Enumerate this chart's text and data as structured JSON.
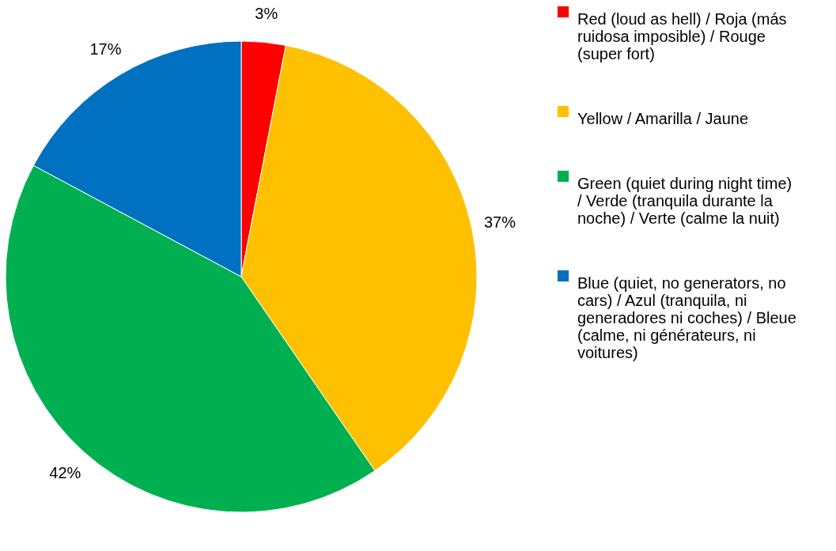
{
  "chart_data": {
    "type": "pie",
    "categories": [
      "Red (loud as hell) / Roja (más ruidosa imposible) / Rouge (super fort)",
      "Yellow / Amarilla / Jaune",
      "Green (quiet during night time) / Verde (tranquila durante la noche) / Verte (calme la nuit)",
      "Blue (quiet, no generators, no cars) / Azul (tranquila, ni generadores ni coches) / Bleue (calme, ni générateurs, ni voitures)"
    ],
    "values": [
      3,
      37,
      42,
      17
    ],
    "colors": [
      "#ff0000",
      "#ffc000",
      "#00b050",
      "#0070c0"
    ],
    "value_labels": [
      "3%",
      "37%",
      "42%",
      "17%"
    ],
    "legend": "right"
  }
}
